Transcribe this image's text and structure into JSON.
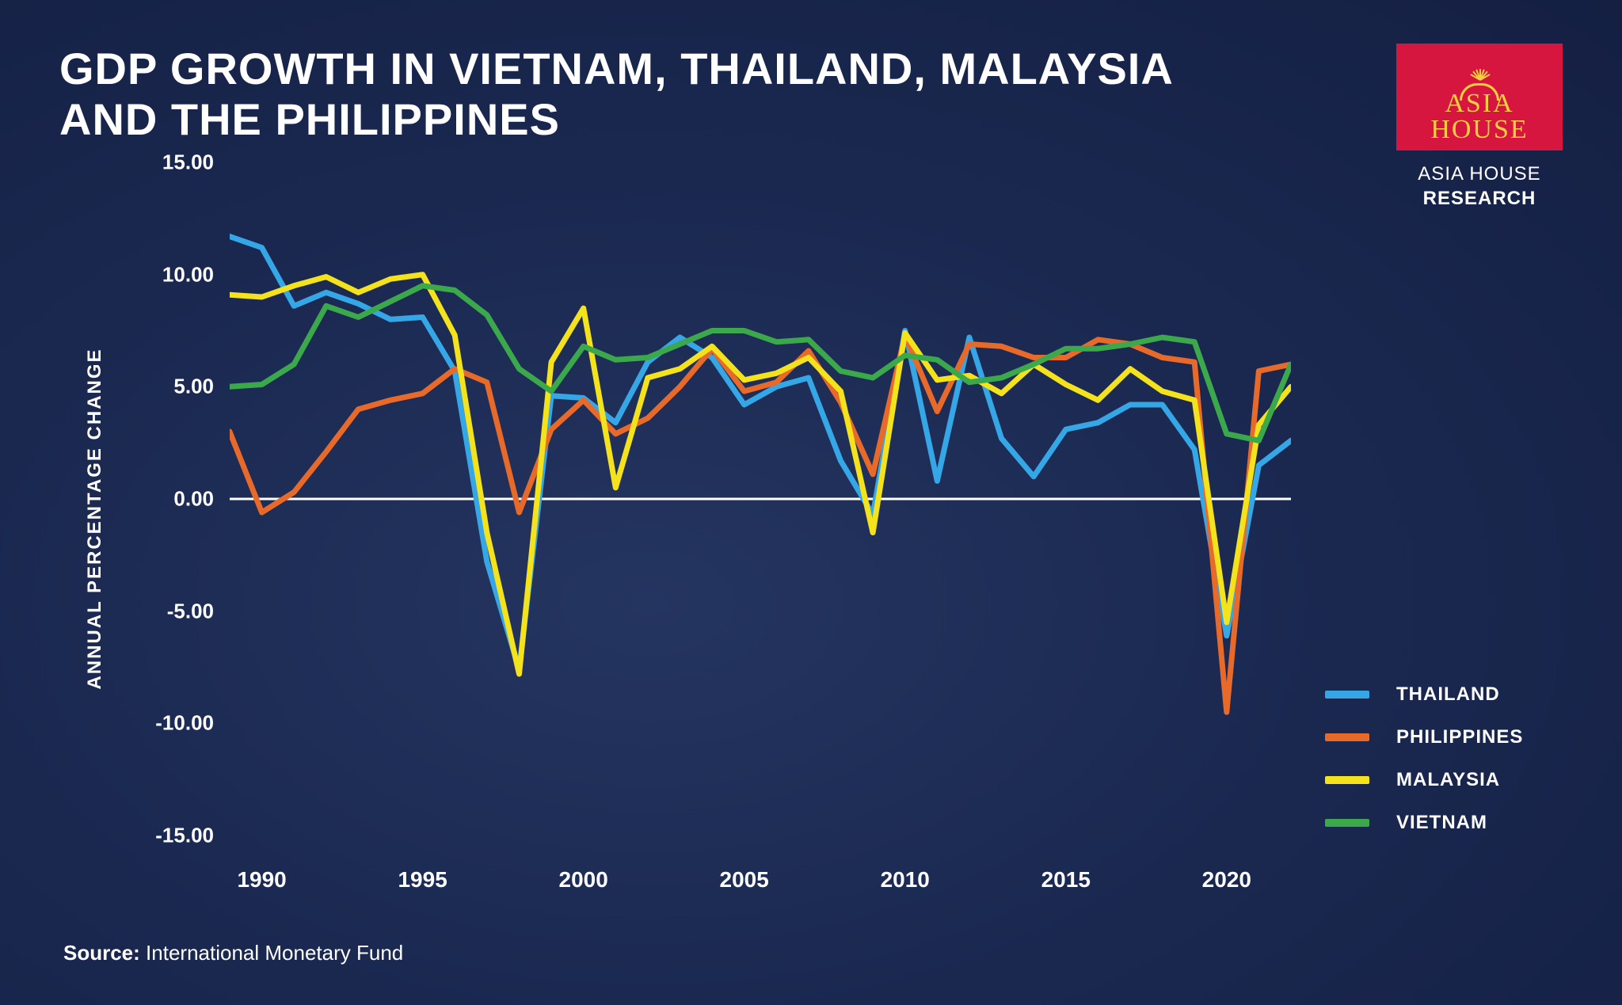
{
  "title": "GDP GROWTH IN VIETNAM, THAILAND, MALAYSIA AND THE PHILIPPINES",
  "logo": {
    "line1": "ASIA",
    "line2": "HOUSE",
    "sub_light": "ASIA HOUSE",
    "sub_bold": "RESEARCH",
    "brand_bg": "#d6163e",
    "brand_fg": "#f4d03f"
  },
  "source": {
    "label": "Source:",
    "text": "International Monetary Fund"
  },
  "chart": {
    "type": "line",
    "ylabel": "ANNUAL PERCENTAGE CHANGE",
    "ylim": [
      -15,
      15
    ],
    "yticks": [
      15.0,
      10.0,
      5.0,
      0.0,
      -5.0,
      -10.0,
      -15.0
    ],
    "xlim": [
      1989,
      2022
    ],
    "xticks": [
      1990,
      1995,
      2000,
      2005,
      2010,
      2015,
      2020
    ],
    "zero_line_color": "#ffffff",
    "background": "transparent",
    "line_width": 7,
    "label_fontsize": 24,
    "tick_fontsize": 26,
    "years": [
      1989,
      1990,
      1991,
      1992,
      1993,
      1994,
      1995,
      1996,
      1997,
      1998,
      1999,
      2000,
      2001,
      2002,
      2003,
      2004,
      2005,
      2006,
      2007,
      2008,
      2009,
      2010,
      2011,
      2012,
      2013,
      2014,
      2015,
      2016,
      2017,
      2018,
      2019,
      2020,
      2021,
      2022
    ],
    "series": [
      {
        "name": "THAILAND",
        "color": "#35a6e6",
        "values": [
          11.7,
          11.2,
          8.6,
          9.2,
          8.7,
          8.0,
          8.1,
          5.7,
          -2.8,
          -7.6,
          4.6,
          4.5,
          3.4,
          6.1,
          7.2,
          6.3,
          4.2,
          5.0,
          5.4,
          1.7,
          -0.7,
          7.5,
          0.8,
          7.2,
          2.7,
          1.0,
          3.1,
          3.4,
          4.2,
          4.2,
          2.2,
          -6.1,
          1.5,
          2.6
        ]
      },
      {
        "name": "PHILIPPINES",
        "color": "#e86a2a",
        "values": [
          3.0,
          -0.6,
          0.3,
          2.1,
          4.0,
          4.4,
          4.7,
          5.8,
          5.2,
          -0.6,
          3.1,
          4.4,
          2.9,
          3.6,
          5.0,
          6.7,
          4.8,
          5.2,
          6.6,
          4.3,
          1.1,
          7.3,
          3.9,
          6.9,
          6.8,
          6.3,
          6.3,
          7.1,
          6.9,
          6.3,
          6.1,
          -9.5,
          5.7,
          6.0
        ]
      },
      {
        "name": "MALAYSIA",
        "color": "#f4e21c",
        "values": [
          9.1,
          9.0,
          9.5,
          9.9,
          9.2,
          9.8,
          10.0,
          7.3,
          -1.5,
          -7.8,
          6.1,
          8.5,
          0.5,
          5.4,
          5.8,
          6.8,
          5.3,
          5.6,
          6.3,
          4.8,
          -1.5,
          7.4,
          5.3,
          5.5,
          4.7,
          6.0,
          5.1,
          4.4,
          5.8,
          4.8,
          4.4,
          -5.5,
          3.3,
          5.0
        ]
      },
      {
        "name": "VIETNAM",
        "color": "#3aa84b",
        "values": [
          5.0,
          5.1,
          6.0,
          8.6,
          8.1,
          8.8,
          9.5,
          9.3,
          8.2,
          5.8,
          4.8,
          6.8,
          6.2,
          6.3,
          6.9,
          7.5,
          7.5,
          7.0,
          7.1,
          5.7,
          5.4,
          6.4,
          6.2,
          5.2,
          5.4,
          6.0,
          6.7,
          6.7,
          6.9,
          7.2,
          7.0,
          2.9,
          2.6,
          6.0
        ]
      }
    ]
  }
}
